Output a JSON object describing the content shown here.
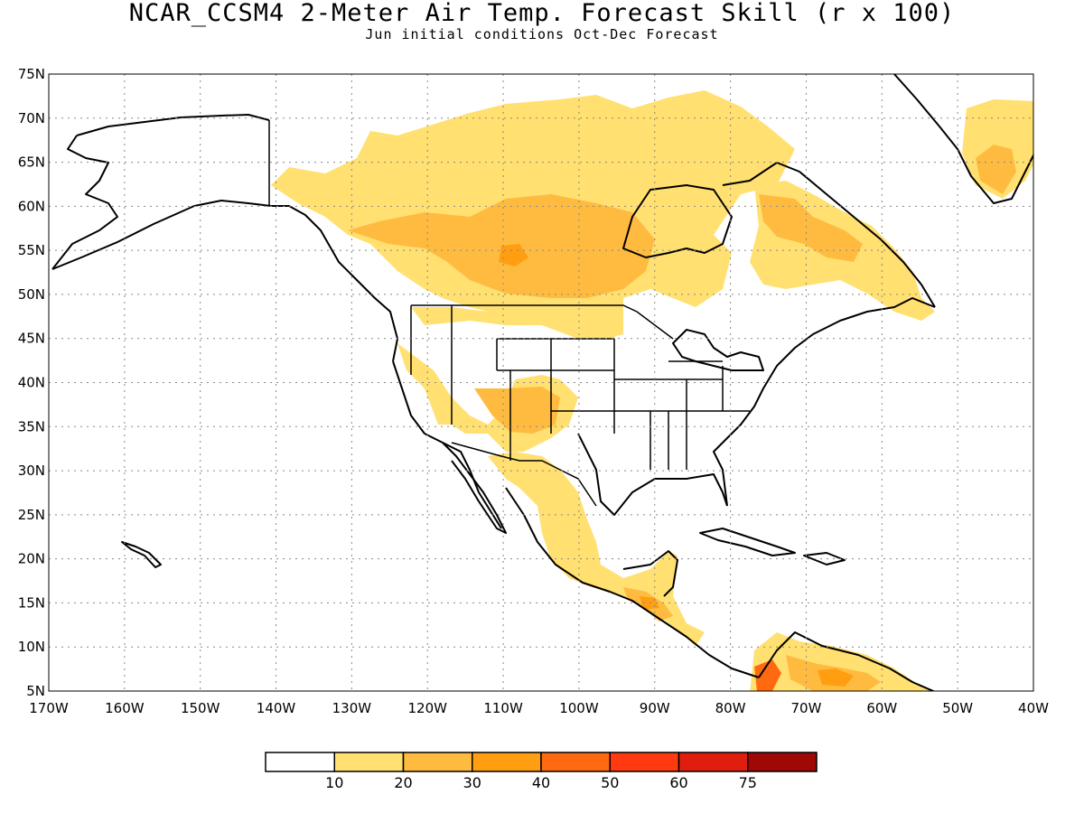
{
  "header": {
    "title": "NCAR_CCSM4 2-Meter Air Temp. Forecast Skill (r x 100)",
    "subtitle": "Jun initial conditions  Oct-Dec Forecast"
  },
  "map": {
    "lon_range": [
      -170,
      -40
    ],
    "lat_range": [
      5,
      75
    ],
    "lat_labels": [
      "5N",
      "10N",
      "15N",
      "20N",
      "25N",
      "30N",
      "35N",
      "40N",
      "45N",
      "50N",
      "55N",
      "60N",
      "65N",
      "70N",
      "75N"
    ],
    "lon_labels": [
      "170W",
      "160W",
      "150W",
      "140W",
      "130W",
      "120W",
      "110W",
      "100W",
      "90W",
      "80W",
      "70W",
      "60W",
      "50W",
      "40W"
    ],
    "grid_lines": "dotted",
    "skill_regions": [
      {
        "name": "canada-west-north",
        "level": "10-20",
        "color": "#ffe070"
      },
      {
        "name": "canada-central",
        "level": "20-30",
        "color": "#ffbb40"
      },
      {
        "name": "canada-core",
        "level": "30-40",
        "color": "#ff9e10"
      },
      {
        "name": "quebec-labrador",
        "level": "10-20",
        "color": "#ffe070"
      },
      {
        "name": "us-southwest",
        "level": "10-20",
        "color": "#ffe070"
      },
      {
        "name": "mexico",
        "level": "10-20",
        "color": "#ffe070"
      },
      {
        "name": "central-america",
        "level": "20-30",
        "color": "#ffbb40"
      },
      {
        "name": "south-america-north",
        "level": "20-30",
        "color": "#ffbb40"
      },
      {
        "name": "colombia-west",
        "level": "40-50",
        "color": "#ff6a10"
      },
      {
        "name": "greenland-southeast",
        "level": "20-30",
        "color": "#ffbb40"
      }
    ]
  },
  "colorbar": {
    "bins": [
      {
        "color": "#ffffff"
      },
      {
        "color": "#ffe070"
      },
      {
        "color": "#ffbb40"
      },
      {
        "color": "#ff9e10"
      },
      {
        "color": "#ff6a10"
      },
      {
        "color": "#ff3a10"
      },
      {
        "color": "#e01e10"
      },
      {
        "color": "#a00808"
      }
    ],
    "labels": [
      "10",
      "20",
      "30",
      "40",
      "50",
      "60",
      "75"
    ]
  }
}
